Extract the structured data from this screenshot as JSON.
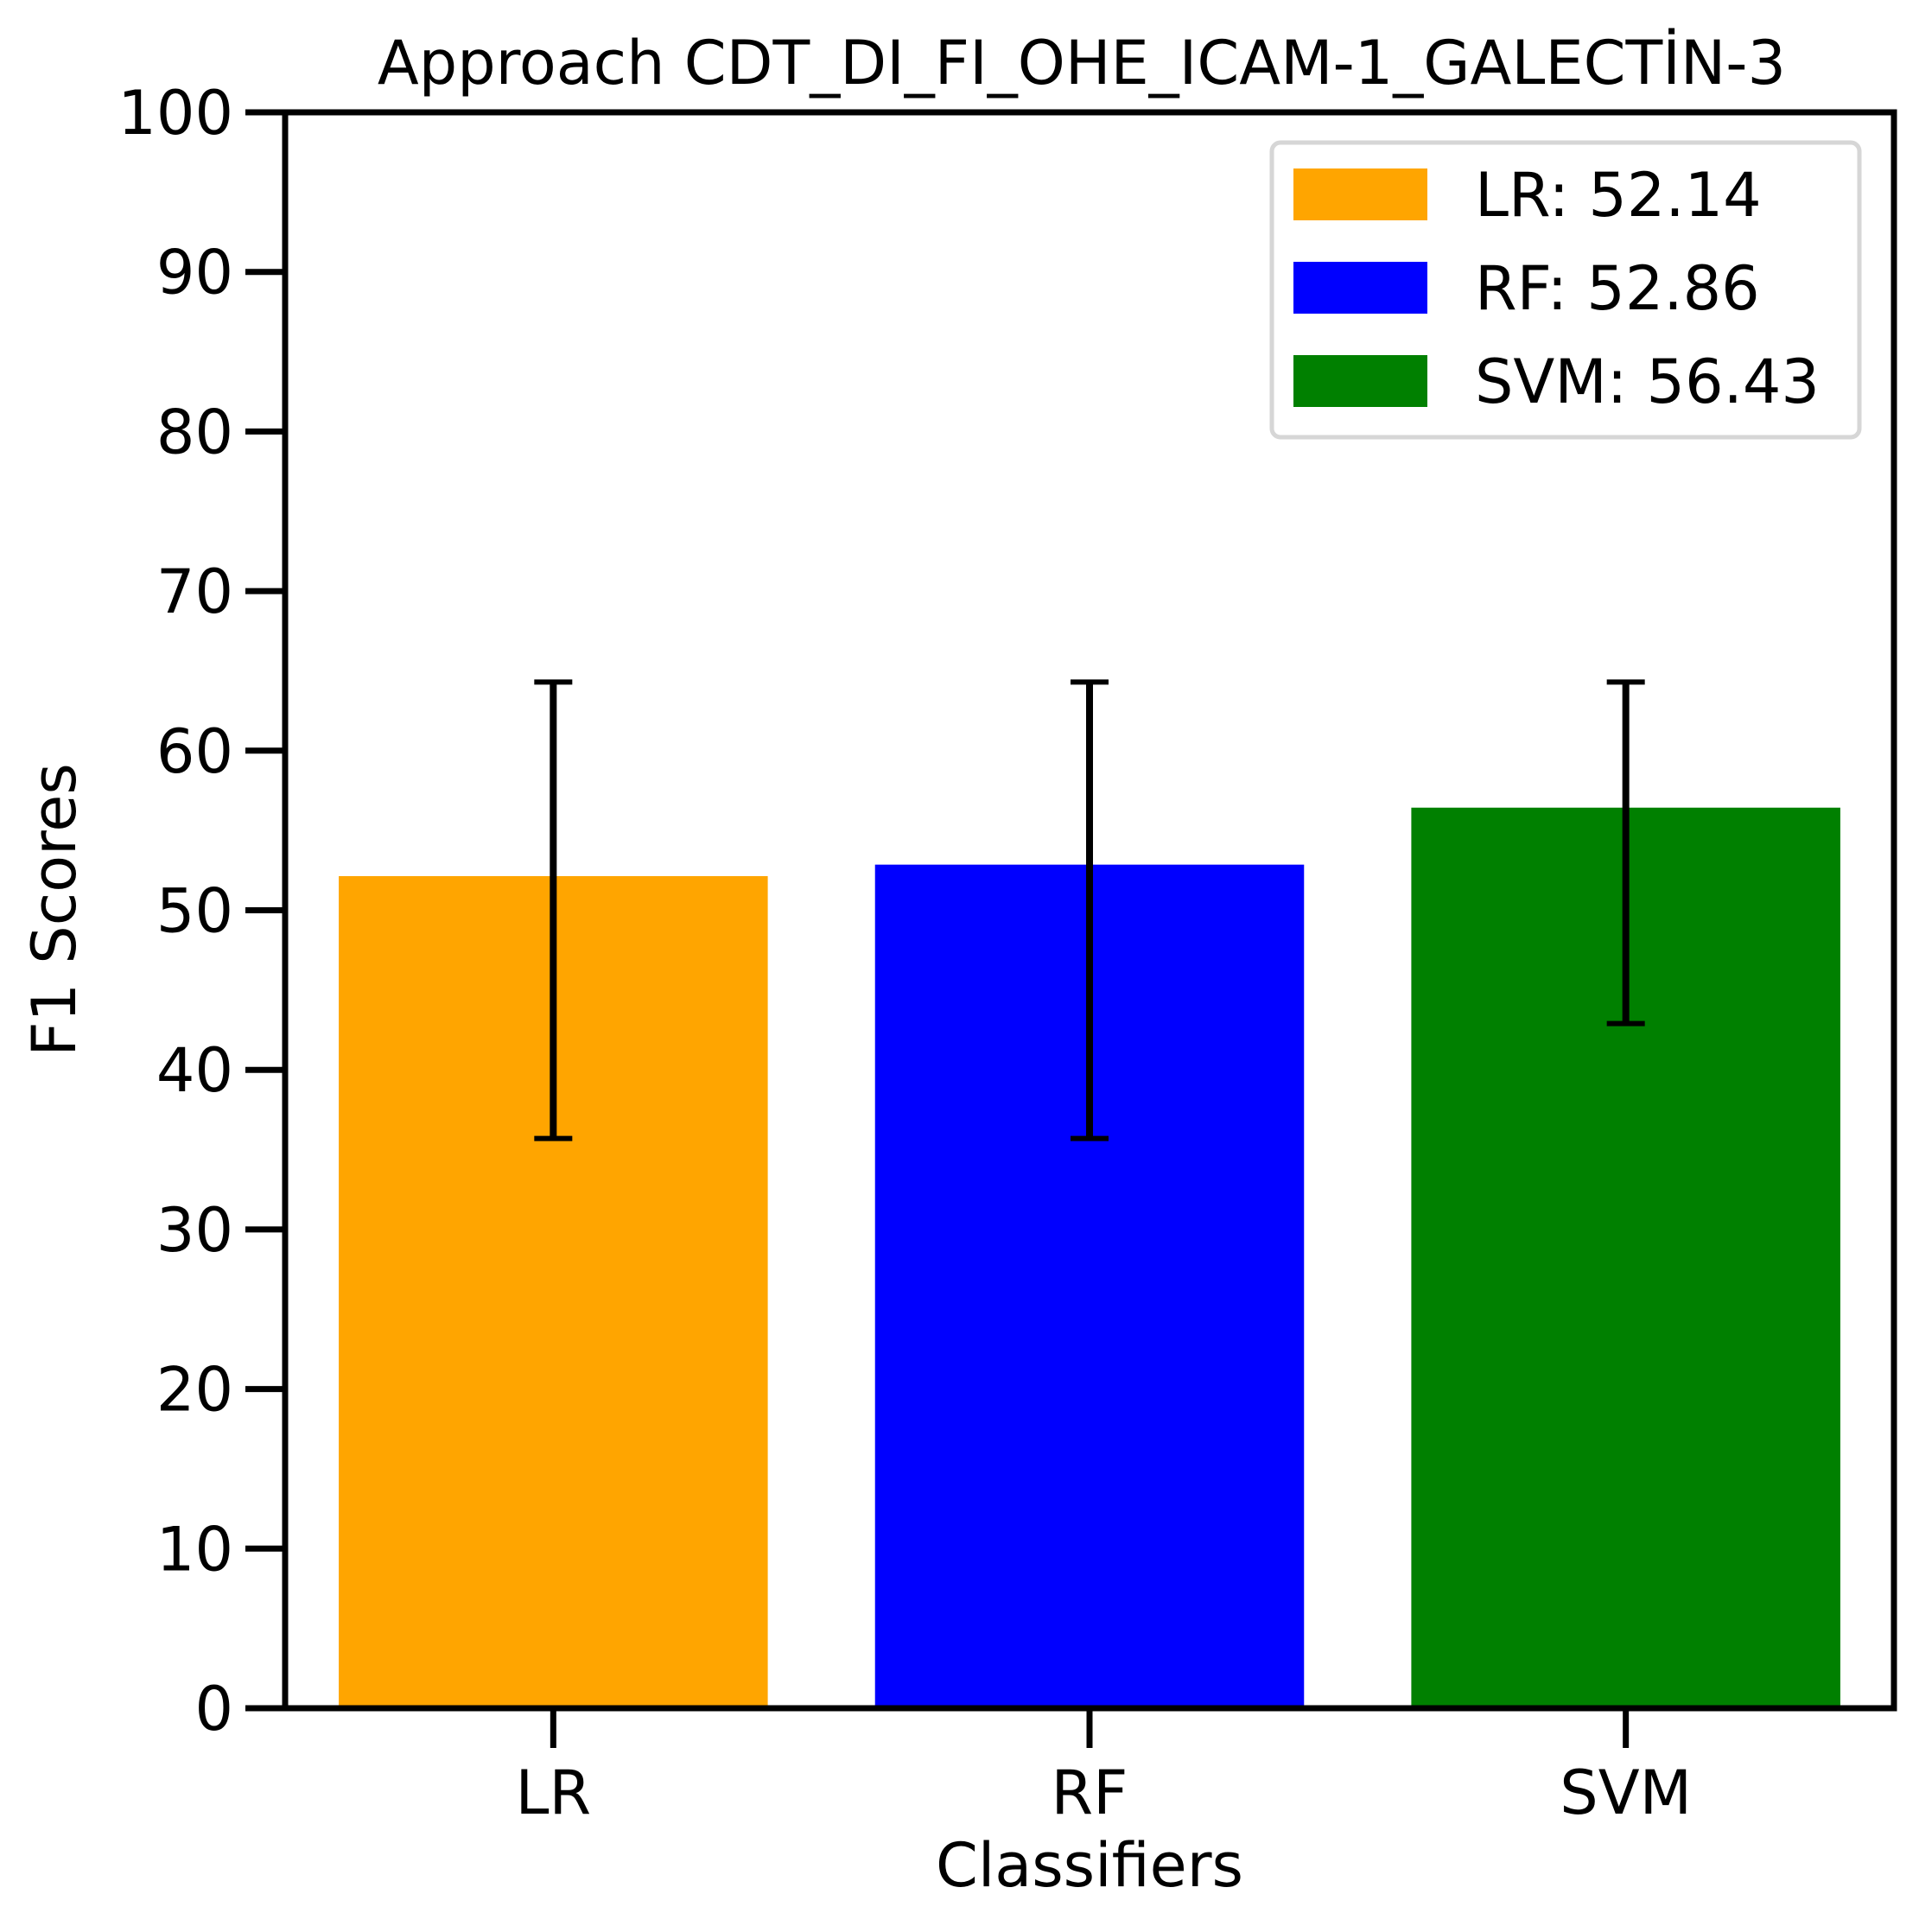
{
  "chart_data": {
    "type": "bar",
    "title": "Approach CDT_DI_FI_OHE_ICAM-1_GALECTİN-3",
    "xlabel": "Classifiers",
    "ylabel": "F1 Scores",
    "ylim": [
      0,
      100
    ],
    "yticks": [
      0,
      10,
      20,
      30,
      40,
      50,
      60,
      70,
      80,
      90,
      100
    ],
    "ytick_labels": [
      "0",
      "10",
      "20",
      "30",
      "40",
      "50",
      "60",
      "70",
      "80",
      "90",
      "100"
    ],
    "categories": [
      "LR",
      "RF",
      "SVM"
    ],
    "values": [
      52.14,
      52.86,
      56.43
    ],
    "error_bars": [
      {
        "low": 35.7,
        "high": 64.3
      },
      {
        "low": 35.7,
        "high": 64.3
      },
      {
        "low": 42.9,
        "high": 64.3
      }
    ],
    "colors": [
      "#ffa500",
      "#0000ff",
      "#008000"
    ],
    "legend": {
      "position": "top-right",
      "entries": [
        {
          "label": "LR: 52.14",
          "color": "#ffa500"
        },
        {
          "label": "RF: 52.86",
          "color": "#0000ff"
        },
        {
          "label": "SVM: 56.43",
          "color": "#008000"
        }
      ]
    },
    "grid": false
  }
}
